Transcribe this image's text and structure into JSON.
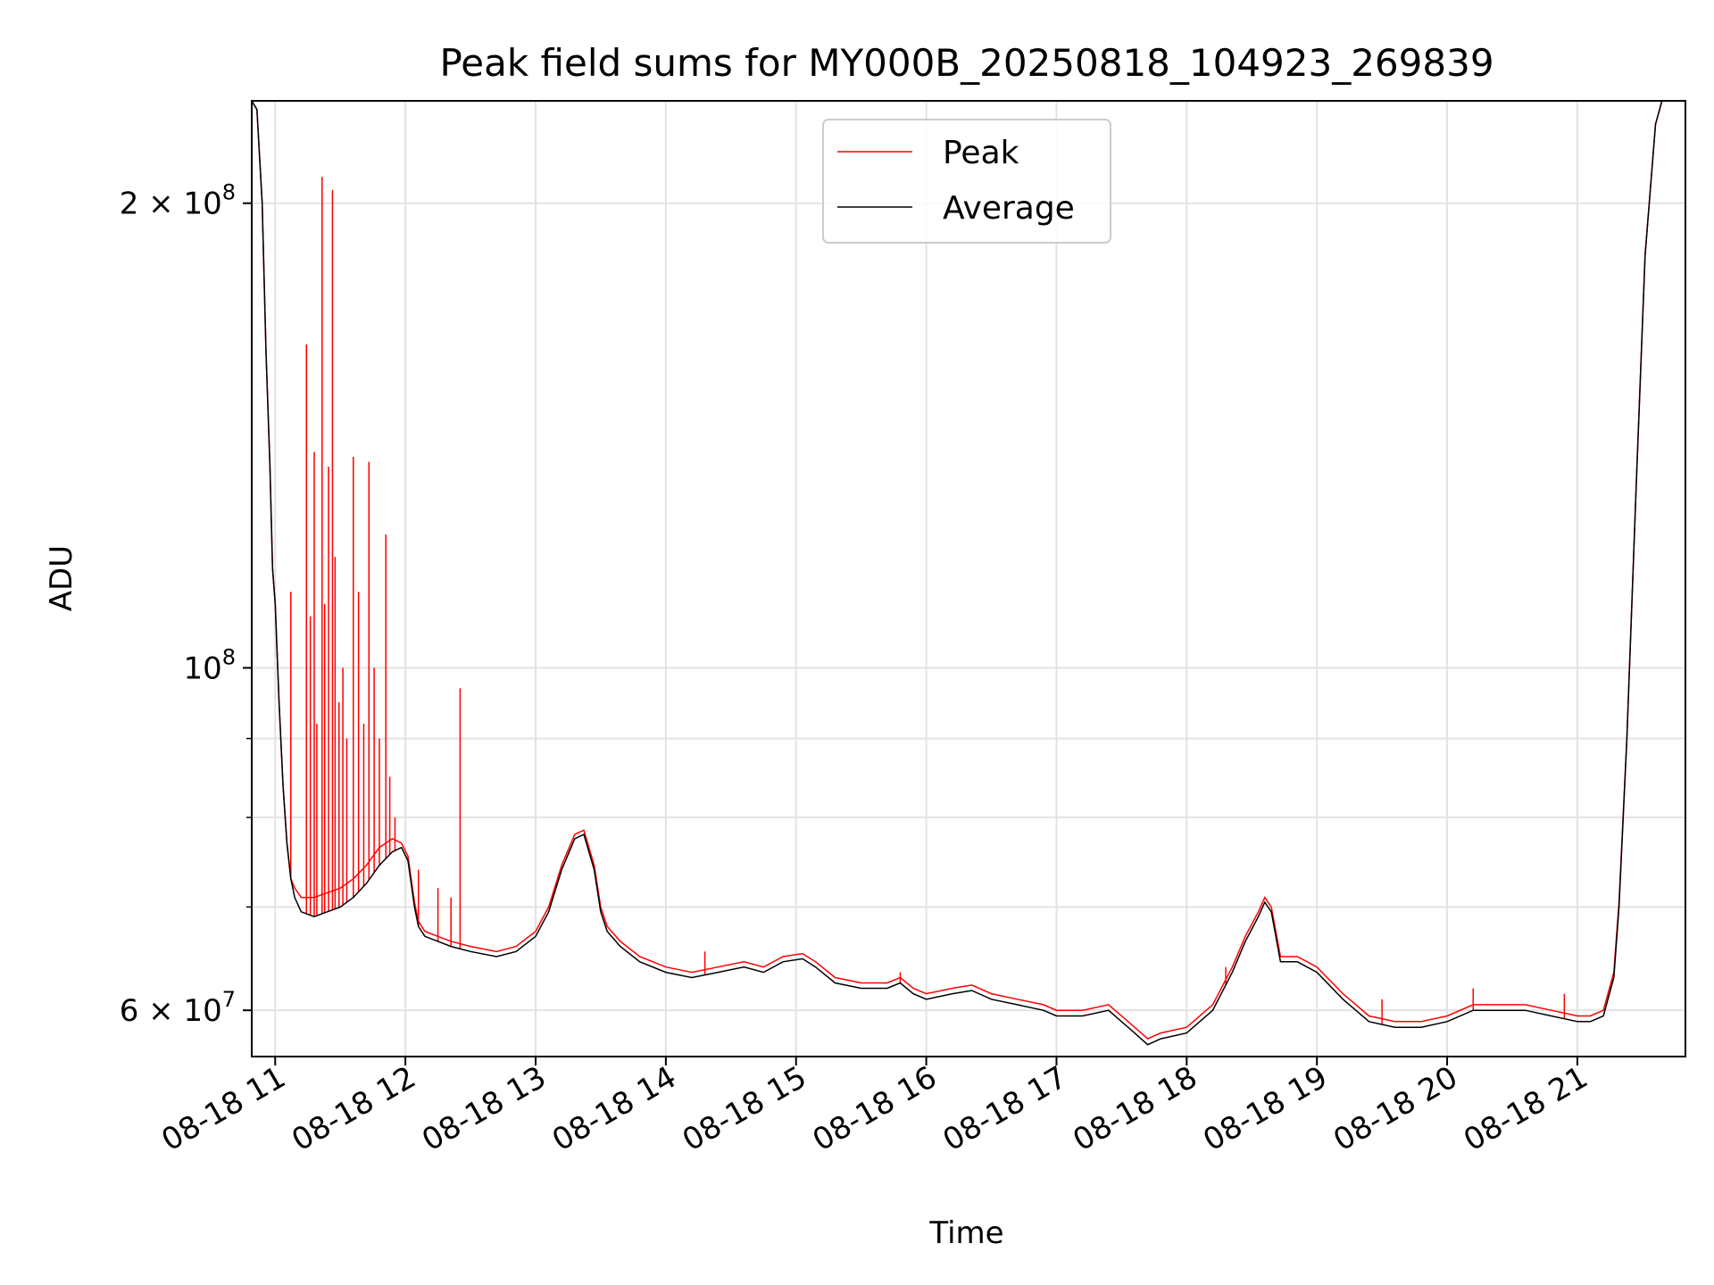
{
  "chart_data": {
    "type": "line",
    "title": "Peak field sums for MY000B_20250818_104923_269839",
    "xlabel": "Time",
    "ylabel": "ADU",
    "yscale": "log",
    "grid": true,
    "legend_position": "top-center",
    "xlim": [
      10.82,
      21.83
    ],
    "ylim": [
      56000000,
      233000000
    ],
    "x_ticks": [
      {
        "value": 11,
        "label": "08-18 11"
      },
      {
        "value": 12,
        "label": "08-18 12"
      },
      {
        "value": 13,
        "label": "08-18 13"
      },
      {
        "value": 14,
        "label": "08-18 14"
      },
      {
        "value": 15,
        "label": "08-18 15"
      },
      {
        "value": 16,
        "label": "08-18 16"
      },
      {
        "value": 17,
        "label": "08-18 17"
      },
      {
        "value": 18,
        "label": "08-18 18"
      },
      {
        "value": 19,
        "label": "08-18 19"
      },
      {
        "value": 20,
        "label": "08-18 20"
      },
      {
        "value": 21,
        "label": "08-18 21"
      }
    ],
    "y_ticks": [
      {
        "value": 60000000,
        "base": "6 × 10",
        "exp": "7"
      },
      {
        "value": 100000000,
        "base": "10",
        "exp": "8"
      },
      {
        "value": 200000000,
        "base": "2 × 10",
        "exp": "8"
      }
    ],
    "y_minor_ticks": [
      70000000,
      80000000,
      90000000
    ],
    "series": [
      {
        "name": "Average",
        "color": "#000000",
        "x": [
          10.82,
          10.86,
          10.9,
          10.93,
          10.96,
          10.98,
          11.0,
          11.03,
          11.06,
          11.09,
          11.12,
          11.15,
          11.2,
          11.3,
          11.4,
          11.5,
          11.6,
          11.7,
          11.8,
          11.9,
          11.97,
          12.02,
          12.07,
          12.1,
          12.15,
          12.25,
          12.35,
          12.5,
          12.7,
          12.85,
          13.0,
          13.1,
          13.2,
          13.3,
          13.37,
          13.45,
          13.5,
          13.55,
          13.65,
          13.8,
          14.0,
          14.2,
          14.4,
          14.6,
          14.75,
          14.9,
          15.05,
          15.15,
          15.3,
          15.5,
          15.7,
          15.8,
          15.9,
          16.0,
          16.2,
          16.35,
          16.5,
          16.7,
          16.9,
          17.0,
          17.2,
          17.4,
          17.6,
          17.7,
          17.8,
          18.0,
          18.2,
          18.35,
          18.45,
          18.55,
          18.6,
          18.65,
          18.72,
          18.85,
          19.0,
          19.2,
          19.4,
          19.6,
          19.8,
          20.0,
          20.2,
          20.4,
          20.6,
          20.8,
          21.0,
          21.1,
          21.2,
          21.28,
          21.32,
          21.38,
          21.45,
          21.52,
          21.6,
          21.65,
          21.7,
          21.74,
          21.78,
          21.83
        ],
        "y": [
          233000000,
          230000000,
          200000000,
          160000000,
          135000000,
          116000000,
          110000000,
          95000000,
          84000000,
          77000000,
          73000000,
          71000000,
          69500000,
          69000000,
          69500000,
          70000000,
          71000000,
          72500000,
          74500000,
          76000000,
          76500000,
          75000000,
          70000000,
          68000000,
          67000000,
          66500000,
          66000000,
          65500000,
          65000000,
          65500000,
          67000000,
          69500000,
          74000000,
          77500000,
          78000000,
          74000000,
          69500000,
          67500000,
          66000000,
          64500000,
          63500000,
          63000000,
          63500000,
          64000000,
          63500000,
          64500000,
          64800000,
          64000000,
          62500000,
          62000000,
          62000000,
          62500000,
          61500000,
          61000000,
          61500000,
          61800000,
          61000000,
          60500000,
          60000000,
          59500000,
          59500000,
          60000000,
          58000000,
          57000000,
          57500000,
          58000000,
          60000000,
          63500000,
          66500000,
          69000000,
          70500000,
          69500000,
          64500000,
          64500000,
          63500000,
          61000000,
          59000000,
          58500000,
          58500000,
          59000000,
          60000000,
          60000000,
          60000000,
          59500000,
          59000000,
          59000000,
          59500000,
          63000000,
          70000000,
          90000000,
          130000000,
          185000000,
          225000000,
          233000000,
          233000000,
          233000000,
          233000000,
          233000000
        ]
      },
      {
        "name": "Peak",
        "color": "#ff0000",
        "x": [
          10.82,
          10.86,
          10.9,
          10.93,
          10.96,
          10.98,
          11.0,
          11.03,
          11.06,
          11.09,
          11.12,
          11.15,
          11.2,
          11.3,
          11.4,
          11.5,
          11.6,
          11.7,
          11.8,
          11.9,
          11.97,
          12.02,
          12.07,
          12.1,
          12.15,
          12.25,
          12.35,
          12.5,
          12.7,
          12.85,
          13.0,
          13.1,
          13.2,
          13.3,
          13.37,
          13.45,
          13.5,
          13.55,
          13.65,
          13.8,
          14.0,
          14.2,
          14.4,
          14.6,
          14.75,
          14.9,
          15.05,
          15.15,
          15.3,
          15.5,
          15.7,
          15.8,
          15.9,
          16.0,
          16.2,
          16.35,
          16.5,
          16.7,
          16.9,
          17.0,
          17.2,
          17.4,
          17.6,
          17.7,
          17.8,
          18.0,
          18.2,
          18.35,
          18.45,
          18.55,
          18.6,
          18.65,
          18.72,
          18.85,
          19.0,
          19.2,
          19.4,
          19.6,
          19.8,
          20.0,
          20.2,
          20.4,
          20.6,
          20.8,
          21.0,
          21.1,
          21.2,
          21.28,
          21.32,
          21.38,
          21.45,
          21.52,
          21.6,
          21.65,
          21.7,
          21.74,
          21.78,
          21.83
        ],
        "y": [
          233000000,
          230000000,
          200000000,
          160000000,
          135000000,
          116000000,
          110000000,
          95000000,
          84000000,
          77000000,
          73000000,
          72000000,
          71000000,
          71000000,
          71500000,
          72000000,
          73000000,
          74500000,
          76500000,
          77500000,
          77000000,
          75500000,
          70500000,
          68500000,
          67500000,
          67000000,
          66500000,
          66000000,
          65500000,
          66000000,
          67500000,
          70000000,
          74500000,
          78000000,
          78500000,
          74500000,
          70000000,
          68000000,
          66500000,
          65000000,
          64000000,
          63500000,
          64000000,
          64500000,
          64000000,
          65000000,
          65300000,
          64500000,
          63000000,
          62500000,
          62500000,
          63000000,
          62000000,
          61500000,
          62000000,
          62300000,
          61500000,
          61000000,
          60500000,
          60000000,
          60000000,
          60500000,
          58500000,
          57500000,
          58000000,
          58500000,
          60500000,
          64000000,
          67000000,
          69500000,
          71000000,
          70000000,
          65000000,
          65000000,
          64000000,
          61500000,
          59500000,
          59000000,
          59000000,
          59500000,
          60500000,
          60500000,
          60500000,
          60000000,
          59500000,
          59500000,
          60000000,
          63500000,
          70500000,
          90000000,
          130000000,
          185000000,
          225000000,
          233000000,
          233000000,
          233000000,
          233000000,
          233000000
        ],
        "spikes": [
          {
            "x": 11.12,
            "y": 112000000
          },
          {
            "x": 11.24,
            "y": 162000000
          },
          {
            "x": 11.27,
            "y": 108000000
          },
          {
            "x": 11.3,
            "y": 138000000
          },
          {
            "x": 11.32,
            "y": 92000000
          },
          {
            "x": 11.36,
            "y": 208000000
          },
          {
            "x": 11.38,
            "y": 110000000
          },
          {
            "x": 11.41,
            "y": 135000000
          },
          {
            "x": 11.44,
            "y": 204000000
          },
          {
            "x": 11.46,
            "y": 118000000
          },
          {
            "x": 11.49,
            "y": 95000000
          },
          {
            "x": 11.52,
            "y": 100000000
          },
          {
            "x": 11.55,
            "y": 90000000
          },
          {
            "x": 11.6,
            "y": 137000000
          },
          {
            "x": 11.64,
            "y": 112000000
          },
          {
            "x": 11.68,
            "y": 92000000
          },
          {
            "x": 11.72,
            "y": 136000000
          },
          {
            "x": 11.76,
            "y": 100000000
          },
          {
            "x": 11.8,
            "y": 90000000
          },
          {
            "x": 11.85,
            "y": 122000000
          },
          {
            "x": 11.88,
            "y": 85000000
          },
          {
            "x": 11.92,
            "y": 80000000
          },
          {
            "x": 12.1,
            "y": 74000000
          },
          {
            "x": 12.25,
            "y": 72000000
          },
          {
            "x": 12.35,
            "y": 71000000
          },
          {
            "x": 12.42,
            "y": 97000000
          },
          {
            "x": 14.3,
            "y": 65500000
          },
          {
            "x": 15.8,
            "y": 63500000
          },
          {
            "x": 18.3,
            "y": 64000000
          },
          {
            "x": 19.5,
            "y": 61000000
          },
          {
            "x": 20.2,
            "y": 62000000
          },
          {
            "x": 20.9,
            "y": 61500000
          }
        ]
      }
    ]
  }
}
